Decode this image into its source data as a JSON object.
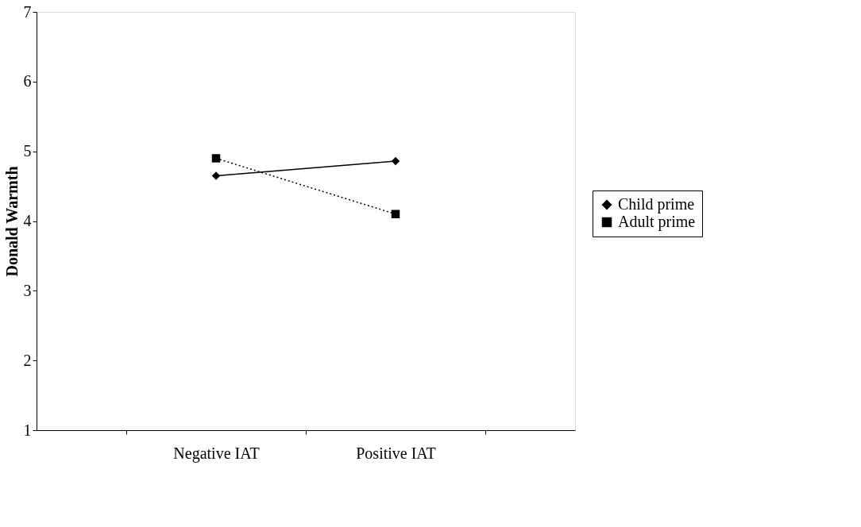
{
  "chart_data": {
    "type": "line",
    "ylabel": "Donald Warmth",
    "categories": [
      "Negative IAT",
      "Positive IAT"
    ],
    "series": [
      {
        "name": "Child prime",
        "color": "#000000",
        "values": [
          4.65,
          4.86
        ],
        "marker": "diamond",
        "line_style": "solid"
      },
      {
        "name": "Adult prime",
        "color": "#000000",
        "values": [
          4.9,
          4.1
        ],
        "marker": "square",
        "line_style": "dotted"
      }
    ],
    "ylim": [
      1,
      7
    ],
    "yticks": [
      1,
      2,
      3,
      4,
      5,
      6,
      7
    ],
    "grid": false,
    "legend": "right"
  }
}
